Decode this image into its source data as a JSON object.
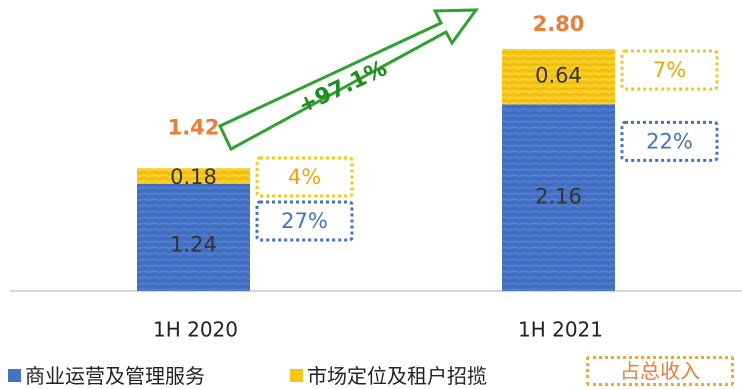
{
  "chart_data": {
    "type": "bar",
    "stacked": true,
    "categories": [
      "1H 2020",
      "1H 2021"
    ],
    "series": [
      {
        "name": "商业运营及管理服务",
        "values": [
          1.24,
          2.16
        ],
        "shares": [
          "27%",
          "22%"
        ],
        "color": "#4472c4"
      },
      {
        "name": "市场定位及租户招揽",
        "values": [
          0.18,
          0.64
        ],
        "shares": [
          "4%",
          "7%"
        ],
        "color": "#f5c518"
      }
    ],
    "totals": [
      1.42,
      2.8
    ],
    "total_labels": [
      "1.42",
      "2.80"
    ],
    "value_labels": {
      "bottom": [
        "1.24",
        "2.16"
      ],
      "top": [
        "0.18",
        "0.64"
      ]
    },
    "growth_annotation": "+97.1%",
    "legend_total_label": "占总收入",
    "ylim": [
      0,
      3.1
    ],
    "legend_position": "bottom",
    "grid": false
  }
}
